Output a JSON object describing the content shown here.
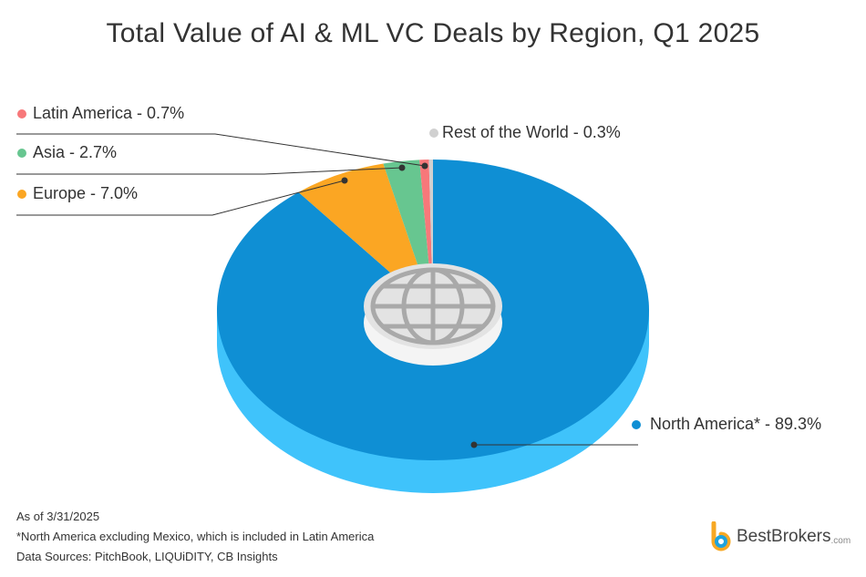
{
  "chart_data": {
    "type": "pie",
    "title": "Total Value of AI & ML VC Deals by Region, Q1 2025",
    "slices": [
      {
        "name": "North America*",
        "value": 89.3,
        "label": "North America* - 89.3%",
        "color": "#0f8fd4",
        "side": "#3fc3fb"
      },
      {
        "name": "Europe",
        "value": 7.0,
        "label": "Europe - 7.0%",
        "color": "#fba623",
        "side": "#fdbf55"
      },
      {
        "name": "Asia",
        "value": 2.7,
        "label": "Asia - 2.7%",
        "color": "#67c690",
        "side": "#8ad7ab"
      },
      {
        "name": "Latin America",
        "value": 0.7,
        "label": "Latin America - 0.7%",
        "color": "#f7787a",
        "side": "#f99b9c"
      },
      {
        "name": "Rest of the World",
        "value": 0.3,
        "label": "Rest of the World - 0.3%",
        "color": "#d0d0d0",
        "side": "#e0e0e0"
      }
    ]
  },
  "notes": {
    "as_of": "As of 3/31/2025",
    "footnote": "*North America excluding Mexico, which is included in Latin America",
    "sources": "Data Sources: PitchBook, LIQUiDITY, CB Insights"
  },
  "logo": {
    "name": "BestBrokers",
    "suffix": ".com"
  }
}
